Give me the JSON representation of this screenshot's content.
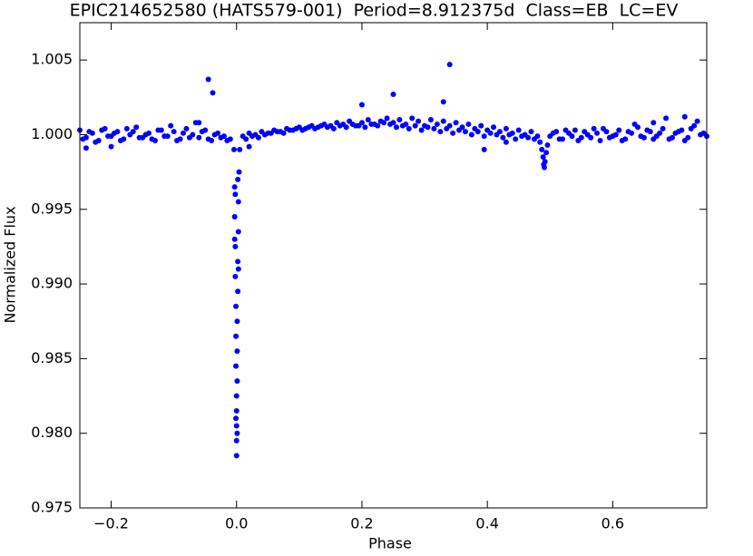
{
  "chart_data": {
    "type": "scatter",
    "title": "EPIC214652580 (HATS579-001)  Period=8.912375d  Class=EB  LC=EV",
    "x_label": "Phase",
    "y_label": "Normalized Flux",
    "xlim": [
      -0.25,
      0.75
    ],
    "ylim": [
      0.975,
      1.0075
    ],
    "xticks": [
      {
        "value": -0.2,
        "label": "−0.2"
      },
      {
        "value": 0,
        "label": "0.0"
      },
      0.2,
      0.4,
      0.6
    ],
    "yticks": [
      0.975,
      {
        "value": 0.98,
        "label": "0.980"
      },
      0.985,
      {
        "value": 0.99,
        "label": "0.990"
      },
      0.995,
      {
        "value": 1.0,
        "label": "1.000"
      },
      1.005
    ],
    "grid": false,
    "series": [
      {
        "color": "#0000ff",
        "x": [
          -0.25,
          -0.24,
          -0.23,
          -0.22,
          -0.21,
          -0.2,
          -0.19,
          -0.18,
          -0.17,
          -0.16,
          -0.15,
          -0.14,
          -0.13,
          -0.12,
          -0.11,
          -0.1,
          -0.09,
          -0.08,
          -0.07,
          -0.06,
          -0.05,
          -0.04,
          -0.03,
          -0.02,
          -0.01,
          -0.245,
          -0.235,
          -0.225,
          -0.215,
          -0.205,
          -0.195,
          -0.185,
          -0.175,
          -0.165,
          -0.155,
          -0.145,
          -0.135,
          -0.125,
          -0.115,
          -0.105,
          -0.095,
          -0.085,
          -0.075,
          -0.065,
          -0.055,
          -0.045,
          -0.035,
          -0.025,
          -0.015,
          -0.004,
          -0.003,
          -0.003,
          -0.002,
          -0.002,
          -0.001,
          -0.001,
          -0.001,
          0,
          0,
          0,
          0,
          0,
          0.001,
          0.001,
          0.001,
          0.002,
          0.002,
          0.003,
          0.003,
          0.004,
          0.005,
          -0.002,
          0.002,
          0.001,
          -0.001,
          0.003,
          -0.003,
          0.01,
          0.02,
          0.03,
          0.04,
          0.05,
          0.06,
          0.07,
          0.08,
          0.09,
          0.1,
          0.11,
          0.12,
          0.13,
          0.14,
          0.15,
          0.16,
          0.17,
          0.18,
          0.19,
          0.2,
          0.21,
          0.22,
          0.23,
          0.24,
          0.25,
          0.26,
          0.27,
          0.28,
          0.29,
          0.3,
          0.31,
          0.32,
          0.33,
          0.34,
          0.35,
          0.36,
          0.37,
          0.38,
          0.39,
          0.4,
          0.41,
          0.42,
          0.43,
          0.44,
          0.45,
          0.46,
          0.47,
          0.48,
          0.015,
          0.025,
          0.035,
          0.045,
          0.055,
          0.065,
          0.075,
          0.085,
          0.095,
          0.105,
          0.115,
          0.125,
          0.135,
          0.145,
          0.155,
          0.165,
          0.175,
          0.185,
          0.195,
          0.205,
          0.215,
          0.225,
          0.235,
          0.245,
          0.255,
          0.265,
          0.275,
          0.285,
          0.295,
          0.305,
          0.315,
          0.325,
          0.335,
          0.345,
          0.355,
          0.365,
          0.375,
          0.385,
          0.395,
          0.405,
          0.415,
          0.425,
          0.435,
          0.445,
          0.455,
          0.465,
          0.475,
          0.484,
          0.487,
          0.489,
          0.49,
          0.491,
          0.492,
          0.494,
          0.496,
          0.5,
          0.51,
          0.52,
          0.53,
          0.54,
          0.55,
          0.56,
          0.57,
          0.58,
          0.59,
          0.6,
          0.61,
          0.62,
          0.63,
          0.64,
          0.65,
          0.66,
          0.67,
          0.68,
          0.69,
          0.7,
          0.71,
          0.72,
          0.73,
          0.74,
          0.75,
          0.505,
          0.515,
          0.525,
          0.535,
          0.545,
          0.555,
          0.565,
          0.575,
          0.585,
          0.595,
          0.605,
          0.615,
          0.625,
          0.635,
          0.645,
          0.655,
          0.665,
          0.675,
          0.685,
          0.695,
          0.705,
          0.715,
          0.725,
          0.735,
          0.745,
          -0.045,
          -0.038,
          -0.06,
          -0.2,
          0.2,
          0.25,
          0.33,
          0.34,
          0.395,
          0.43,
          0.02,
          0.715,
          0.665,
          -0.24
        ],
        "values": [
          1.0003,
          0.9998,
          1.0001,
          0.9996,
          1.0004,
          0.9999,
          1.0002,
          0.9997,
          1.0,
          1.0005,
          0.9998,
          1.0001,
          0.9996,
          1.0003,
          0.9999,
          1.0002,
          0.9997,
          1.0004,
          1.0,
          0.9998,
          1.0003,
          0.9996,
          1.0001,
          0.9999,
          0.9997,
          0.9997,
          1.0002,
          0.9995,
          1.0003,
          0.9999,
          1.0001,
          0.9996,
          1.0004,
          1.0002,
          0.9998,
          1.0,
          0.9997,
          1.0003,
          0.9999,
          1.0006,
          0.9996,
          1.0001,
          0.9998,
          1.0008,
          1.0002,
          0.9997,
          1.0,
          0.9998,
          0.9996,
          0.999,
          0.9965,
          0.9945,
          0.9925,
          0.9905,
          0.9885,
          0.9865,
          0.9845,
          0.9825,
          0.9805,
          0.9785,
          0.9795,
          0.9815,
          0.9835,
          0.9855,
          0.9875,
          0.9895,
          0.9915,
          0.9935,
          0.9955,
          0.9975,
          0.999,
          0.996,
          0.997,
          0.98,
          0.981,
          0.991,
          0.993,
          0.9999,
          1.0001,
          1.0,
          1.0002,
          1.0001,
          1.0003,
          1.0002,
          1.0004,
          1.0003,
          1.0005,
          1.0004,
          1.0006,
          1.0005,
          1.0007,
          1.0006,
          1.0008,
          1.0007,
          1.0009,
          1.0006,
          1.0008,
          1.001,
          1.0007,
          1.0009,
          1.0011,
          1.0008,
          1.001,
          1.0007,
          1.0011,
          1.0009,
          1.0006,
          1.001,
          1.0007,
          1.0009,
          1.0006,
          1.0008,
          1.0005,
          1.0007,
          1.0004,
          1.0006,
          1.0003,
          1.0005,
          1.0002,
          1.0004,
          1.0001,
          1.0003,
          1.0,
          1.0002,
          0.9999,
          0.9997,
          0.9999,
          0.9998,
          1.0,
          1.0001,
          1.0002,
          1.0001,
          1.0003,
          1.0004,
          1.0003,
          1.0005,
          1.0004,
          1.0006,
          1.0005,
          1.0004,
          1.0006,
          1.0005,
          1.0007,
          1.0006,
          1.0005,
          1.0007,
          1.0006,
          1.0008,
          1.0007,
          1.0005,
          1.0006,
          1.0004,
          1.0006,
          1.0003,
          1.0005,
          1.0004,
          1.0002,
          1.0004,
          1.0001,
          1.0003,
          1.0002,
          1.0,
          1.0002,
          0.9999,
          1.0001,
          1.0,
          0.9998,
          1.0,
          0.9997,
          0.9999,
          0.9998,
          0.9997,
          0.9995,
          0.999,
          0.9985,
          0.998,
          0.9978,
          0.9982,
          0.9988,
          0.9993,
          0.9999,
          1.0002,
          0.9997,
          1.0001,
          1.0003,
          0.9998,
          1.0,
          1.0004,
          0.9996,
          1.0002,
          0.9999,
          1.0003,
          0.9997,
          1.0001,
          1.0005,
          0.9998,
          1.0002,
          0.9999,
          1.0004,
          0.9997,
          1.0001,
          1.0003,
          0.9998,
          1.0006,
          1.0,
          0.9999,
          1.0001,
          0.9997,
          1.0003,
          0.9999,
          0.9996,
          1.0002,
          0.9998,
          1.0001,
          1.0004,
          0.9998,
          1.0,
          0.9996,
          1.0002,
          1.0007,
          0.9999,
          1.0003,
          0.9997,
          1.0001,
          1.0011,
          0.9998,
          1.0002,
          0.9996,
          1.0004,
          1.0009,
          1.0001,
          1.0037,
          1.0028,
          1.0008,
          0.9992,
          1.002,
          1.0027,
          1.0022,
          1.0047,
          0.999,
          0.9995,
          0.9992,
          1.0012,
          1.0008,
          0.9991
        ]
      }
    ]
  }
}
